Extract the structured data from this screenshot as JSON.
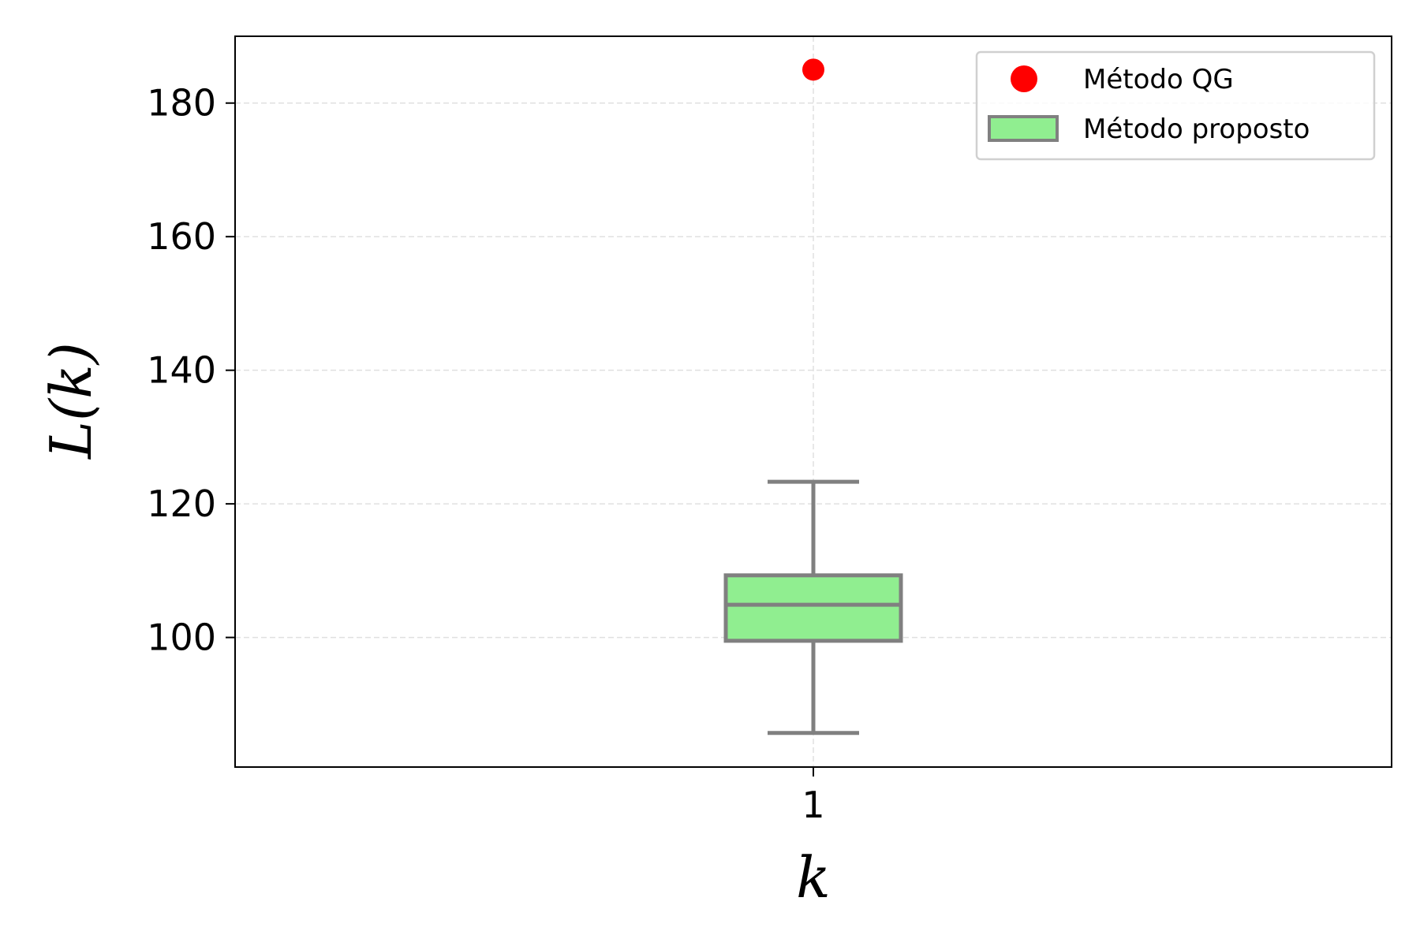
{
  "chart_data": {
    "type": "box",
    "xlabel": "k",
    "ylabel": "L(k)",
    "x_ticks": [
      "1"
    ],
    "y_ticks": [
      100,
      120,
      140,
      160,
      180
    ],
    "ylim": [
      80.6,
      190
    ],
    "grid": true,
    "legend_position": "top-right",
    "series": [
      {
        "name": "Método QG",
        "kind": "point",
        "color": "#ff0000",
        "x": "1",
        "y": 185
      },
      {
        "name": "Método proposto",
        "kind": "box",
        "fill": "#90ee90",
        "edge": "#808080",
        "x": "1",
        "whisker_low": 85.7,
        "q1": 99.5,
        "median": 104.9,
        "q3": 109.3,
        "whisker_high": 123.3
      }
    ]
  }
}
